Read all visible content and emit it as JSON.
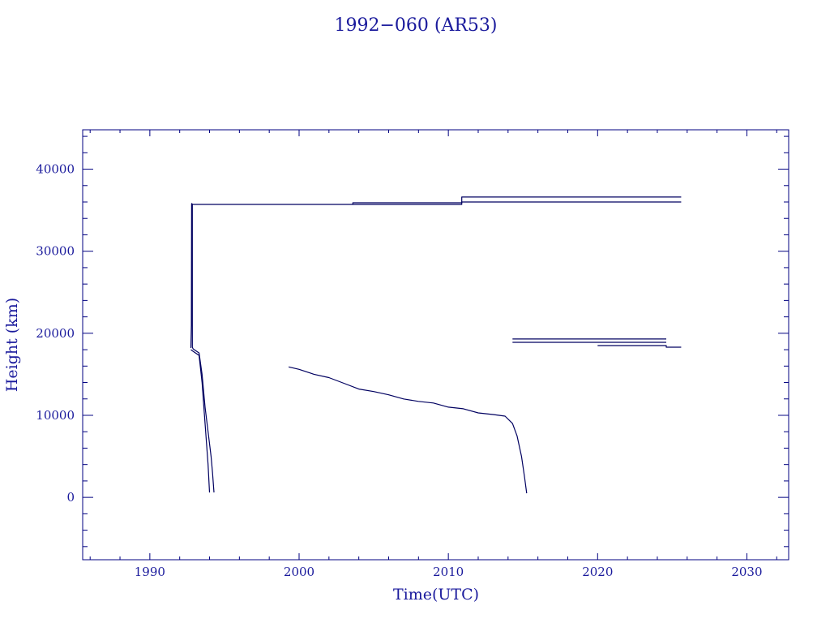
{
  "chart_data": {
    "type": "line",
    "title": "1992−060 (AR53)",
    "xlabel": "Time(UTC)",
    "ylabel": "Height (km)",
    "xlim": [
      1985.5,
      2032.8
    ],
    "ylim": [
      -7600,
      44800
    ],
    "x_major_ticks": [
      1990,
      2000,
      2010,
      2020,
      2030
    ],
    "x_minor_step": 2,
    "x_tick_labels": [
      "1990",
      "2000",
      "2010",
      "2020",
      "2030"
    ],
    "y_major_ticks": [
      0,
      10000,
      20000,
      30000,
      40000
    ],
    "y_minor_step": 2000,
    "y_tick_labels": [
      "0",
      "10000",
      "20000",
      "30000",
      "40000"
    ],
    "grid": false,
    "line_color": "#000060",
    "text_color": "#1a1a9c",
    "series": [
      {
        "x": [
          1992.75,
          1992.78,
          1992.8,
          1992.82,
          1992.85,
          1992.85,
          1992.9,
          1993.3,
          1993.5,
          1993.7,
          1993.9,
          1994.1,
          1994.2,
          1994.3
        ],
        "y": [
          18200,
          21000,
          35800,
          35800,
          35700,
          18300,
          18100,
          17600,
          15000,
          11000,
          8000,
          5000,
          3000,
          600
        ]
      },
      {
        "x": [
          1992.75,
          1992.9,
          1993.3,
          1993.5,
          1993.7,
          1993.9,
          1994.0
        ],
        "y": [
          18000,
          17800,
          17300,
          14000,
          9000,
          4000,
          600
        ]
      },
      {
        "x": [
          1992.85,
          2003.6,
          2003.6,
          2010.9,
          2010.9,
          2025.6
        ],
        "y": [
          35700,
          35700,
          35900,
          35900,
          36600,
          36600
        ]
      },
      {
        "x": [
          2003.6,
          2010.9,
          2010.9,
          2025.6
        ],
        "y": [
          35700,
          35700,
          36000,
          36000
        ]
      },
      {
        "x": [
          1999.3,
          2000,
          2001,
          2002,
          2003,
          2004,
          2005,
          2006,
          2007,
          2008,
          2009,
          2010,
          2011,
          2012,
          2013,
          2013.8,
          2014.3,
          2014.6,
          2014.9,
          2015.1,
          2015.25
        ],
        "y": [
          15900,
          15600,
          15000,
          14600,
          13900,
          13200,
          12900,
          12500,
          12000,
          11700,
          11500,
          11000,
          10800,
          10300,
          10100,
          9900,
          9000,
          7500,
          5000,
          2500,
          500
        ]
      },
      {
        "x": [
          2014.3,
          2024.6
        ],
        "y": [
          19300,
          19300
        ]
      },
      {
        "x": [
          2014.3,
          2024.6
        ],
        "y": [
          18900,
          18900
        ]
      },
      {
        "x": [
          2020.0,
          2024.6,
          2024.6,
          2025.6
        ],
        "y": [
          18500,
          18500,
          18300,
          18300
        ]
      }
    ]
  }
}
